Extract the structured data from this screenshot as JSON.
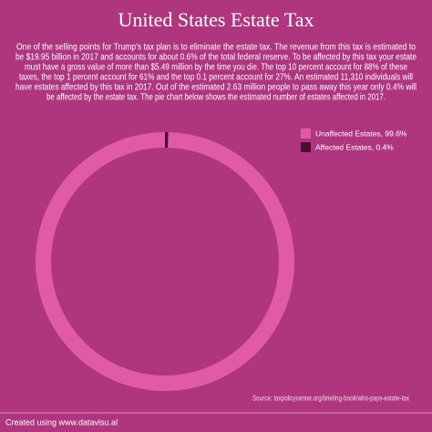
{
  "chart_data": {
    "type": "donut",
    "title": "United States Estate Tax",
    "description": [
      "One of the selling points for Trump's tax plan is to eliminate the estate tax. The revenue from this tax is estimated to",
      "be $19.95 billion in 2017 and accounts for about 0.6% of the total federal reserve. To be affected by this tax your estate",
      "must have a gross value of more than $5.49 million by the time you die. The top 10 percent account for 88% of these",
      "taxes, the top 1 percent account for 61% and the top 0.1 percent account for 27%. An estimated 11,310 individuals will",
      "have estates affected by this tax in 2017. Out of the estimated 2.63 million people to pass away this year only 0.4% will",
      "be affected by the estate tax. The pie chart below shows the estimated number of estates affected in 2017."
    ],
    "categories": [
      "Unaffected Estates, 99.6%",
      "Affected Estates, 0.4%"
    ],
    "values": [
      99.6,
      0.4
    ],
    "colors": [
      "#e05aa8",
      "#4f0d33"
    ],
    "legend": "top-right",
    "source": "Source: taxpolicycenter.org/briefing-book/who-pays-estate-tax",
    "footer": "Created using www.datavisu.al"
  }
}
